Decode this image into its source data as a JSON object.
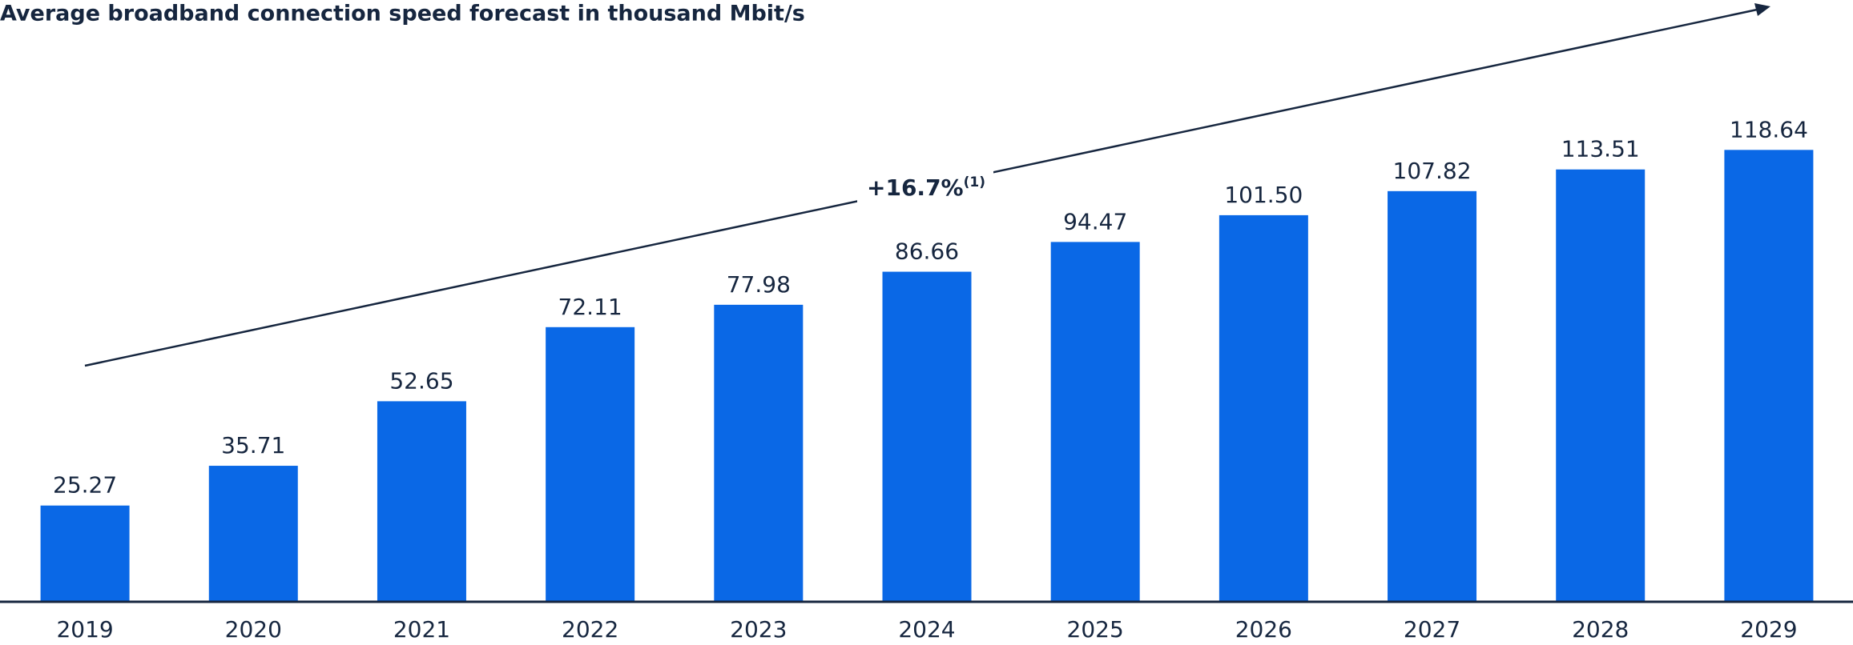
{
  "chart_data": {
    "type": "bar",
    "title": "Average broadband connection speed forecast in thousand Mbit/s",
    "categories": [
      "2019",
      "2020",
      "2021",
      "2022",
      "2023",
      "2024",
      "2025",
      "2026",
      "2027",
      "2028",
      "2029"
    ],
    "values": [
      25.27,
      35.71,
      52.65,
      72.11,
      77.98,
      86.66,
      94.47,
      101.5,
      107.82,
      113.51,
      118.64
    ],
    "value_labels": [
      "25.27",
      "35.71",
      "52.65",
      "72.11",
      "77.98",
      "86.66",
      "94.47",
      "101.50",
      "107.82",
      "113.51",
      "118.64"
    ],
    "color": "#0a68e6",
    "ylim": [
      0,
      158
    ],
    "annotation": "+16.7%",
    "annotation_note": "(1)"
  }
}
